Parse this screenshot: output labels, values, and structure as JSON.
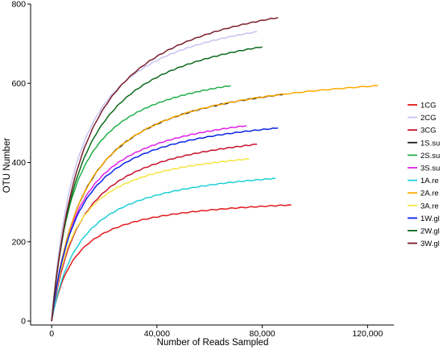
{
  "chart_data": {
    "type": "line",
    "title": "",
    "xlabel": "Number of Reads Sampled",
    "ylabel": "OTU Number",
    "xlim": [
      -8000,
      130000
    ],
    "ylim": [
      -10,
      800
    ],
    "x_ticks": [
      0,
      40000,
      80000,
      120000
    ],
    "x_tick_labels": [
      "0",
      "40,000",
      "80,000",
      "120,000"
    ],
    "y_ticks": [
      0,
      200,
      400,
      600,
      800
    ],
    "y_tick_labels": [
      "0",
      "200",
      "400",
      "600",
      "800"
    ],
    "grid": false,
    "legend_position": "right",
    "series": [
      {
        "name": "1CG",
        "color": "#e41a1c",
        "max_reads": 91000,
        "final_otu": 293
      },
      {
        "name": "2CG",
        "color": "#c8c2f0",
        "max_reads": 78000,
        "final_otu": 730
      },
      {
        "name": "3CG",
        "color": "#c8102e",
        "max_reads": 78000,
        "final_otu": 446
      },
      {
        "name": "1S.su",
        "color": "#1a1a1a",
        "max_reads": 88000,
        "final_otu": 572
      },
      {
        "name": "2S.su",
        "color": "#22b14c",
        "max_reads": 68000,
        "final_otu": 594
      },
      {
        "name": "3S.su",
        "color": "#e020e8",
        "max_reads": 74000,
        "final_otu": 493
      },
      {
        "name": "1A.re",
        "color": "#1ecfd6",
        "max_reads": 85000,
        "final_otu": 360
      },
      {
        "name": "2A.re",
        "color": "#ffaa00",
        "max_reads": 124000,
        "final_otu": 594
      },
      {
        "name": "3A.re",
        "color": "#f5e642",
        "max_reads": 75000,
        "final_otu": 409
      },
      {
        "name": "1W.gl",
        "color": "#0a24e6",
        "max_reads": 86000,
        "final_otu": 487
      },
      {
        "name": "2W.gl",
        "color": "#0b6b1c",
        "max_reads": 80000,
        "final_otu": 692
      },
      {
        "name": "3W.gl",
        "color": "#7a1f2b",
        "max_reads": 86000,
        "final_otu": 766
      }
    ]
  }
}
